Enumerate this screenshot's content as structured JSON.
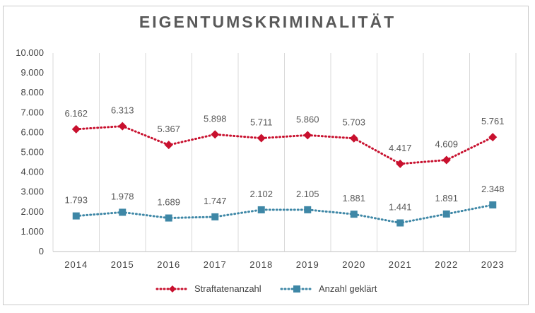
{
  "chart_data": {
    "type": "line",
    "title": "EIGENTUMSKRIMINALITÄT",
    "categories": [
      "2014",
      "2015",
      "2016",
      "2017",
      "2018",
      "2019",
      "2020",
      "2021",
      "2022",
      "2023"
    ],
    "ylim": [
      0,
      10000
    ],
    "yticks": [
      0,
      1000,
      2000,
      3000,
      4000,
      5000,
      6000,
      7000,
      8000,
      9000,
      10000
    ],
    "ytick_labels": [
      "0",
      "1.000",
      "2.000",
      "3.000",
      "4.000",
      "5.000",
      "6.000",
      "7.000",
      "8.000",
      "9.000",
      "10.000"
    ],
    "grid": "vertical category separators",
    "legend_position": "bottom",
    "series": [
      {
        "name": "Straftatenanzahl",
        "color": "#c8102e",
        "marker": "diamond",
        "line_style": "dotted",
        "values": [
          6162,
          6313,
          5367,
          5898,
          5711,
          5860,
          5703,
          4417,
          4609,
          5761
        ],
        "labels": [
          "6.162",
          "6.313",
          "5.367",
          "5.898",
          "5.711",
          "5.860",
          "5.703",
          "4.417",
          "4.609",
          "5.761"
        ]
      },
      {
        "name": "Anzahl geklärt",
        "color": "#3e87a6",
        "marker": "square",
        "line_style": "dotted",
        "values": [
          1793,
          1978,
          1689,
          1747,
          2102,
          2105,
          1881,
          1441,
          1891,
          2348
        ],
        "labels": [
          "1.793",
          "1.978",
          "1.689",
          "1.747",
          "2.102",
          "2.105",
          "1.881",
          "1.441",
          "1.891",
          "2.348"
        ]
      }
    ]
  }
}
